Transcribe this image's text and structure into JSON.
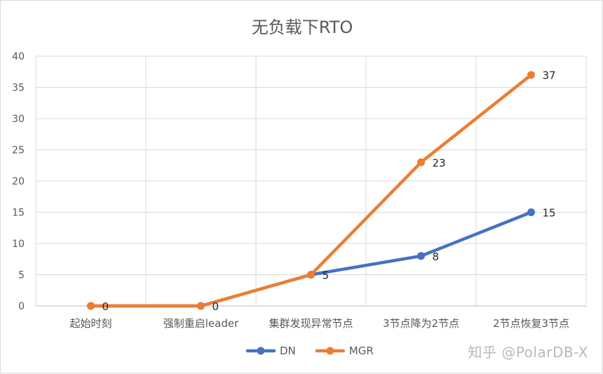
{
  "chart_data": {
    "type": "line",
    "title": "无负载下RTO",
    "categories": [
      "起始时刻",
      "强制重启leader",
      "集群发现异常节点",
      "3节点降为2节点",
      "2节点恢复3节点"
    ],
    "ylim": [
      0,
      40
    ],
    "yticks": [
      0,
      5,
      10,
      15,
      20,
      25,
      30,
      35,
      40
    ],
    "grid": true,
    "legend_position": "bottom",
    "series": [
      {
        "name": "DN",
        "color": "#4472c4",
        "values": [
          0,
          0,
          5,
          8,
          15
        ],
        "labels": [
          "0",
          "0",
          "5",
          "8",
          "15"
        ]
      },
      {
        "name": "MGR",
        "color": "#ed7d31",
        "values": [
          0,
          0,
          5,
          23,
          37
        ],
        "labels": [
          "",
          "",
          "",
          "23",
          "37"
        ]
      }
    ]
  },
  "watermark": "知乎 @PolarDB-X"
}
